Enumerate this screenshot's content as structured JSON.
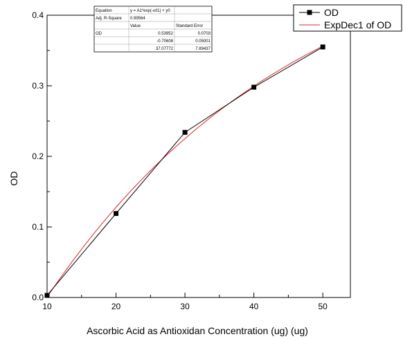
{
  "chart_data": {
    "type": "line",
    "xlabel": "Ascorbic Acid as Antioxidan Concentration (ug) (ug)",
    "ylabel": "OD",
    "xlim": [
      10,
      54
    ],
    "ylim": [
      0.0,
      0.4
    ],
    "xticks": [
      10,
      20,
      30,
      40,
      50
    ],
    "xtick_labels": [
      "10",
      "20",
      "30",
      "40",
      "50"
    ],
    "yticks": [
      0.0,
      0.1,
      0.2,
      0.3,
      0.4
    ],
    "ytick_labels": [
      "0.0",
      "0.1",
      "0.2",
      "0.3",
      "0.4"
    ],
    "grid": false,
    "legend_position": "top-right",
    "series": [
      {
        "name": "OD",
        "style": "line-with-square-markers",
        "color": "#000000",
        "x": [
          10,
          20,
          30,
          40,
          50
        ],
        "y": [
          0.003,
          0.119,
          0.234,
          0.298,
          0.355
        ]
      },
      {
        "name": "ExpDec1 of OD",
        "style": "fit-line",
        "color": "#e0242b",
        "model": {
          "A1": -0.70608,
          "t1": 37.07772,
          "y0": 0.53952
        },
        "x_range": [
          10,
          50
        ]
      }
    ],
    "fit_table": {
      "rows": [
        [
          "Equation",
          "y = A1*exp(-x/t1) + y0",
          ""
        ],
        [
          "Adj. R-Square",
          "0.99564",
          ""
        ],
        [
          "",
          "Value",
          "Standard Error"
        ],
        [
          "OD",
          "0.53952",
          "0.0703"
        ],
        [
          "",
          "-0.70608",
          "0.05001"
        ],
        [
          "",
          "37.07772",
          "7.89437"
        ]
      ]
    }
  }
}
